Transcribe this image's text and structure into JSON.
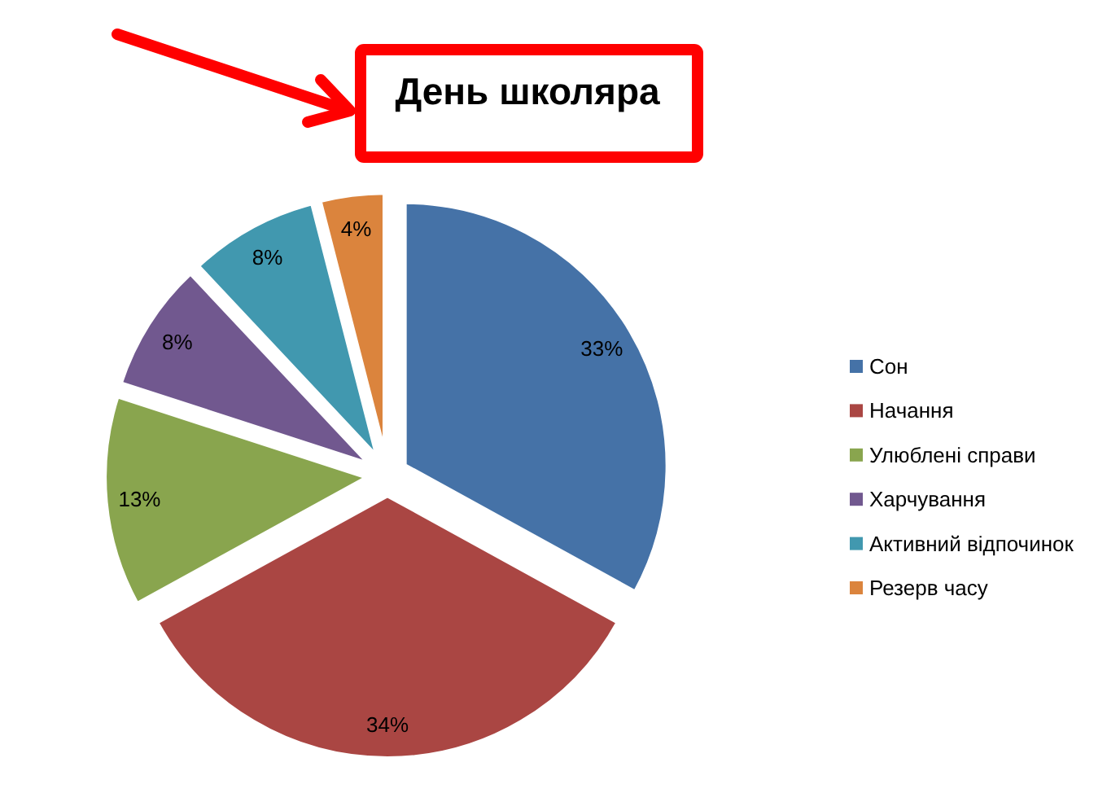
{
  "chart_data": {
    "type": "pie",
    "title": "День школяра",
    "categories": [
      "Сон",
      "Начання",
      "Улюблені справи",
      "Харчування",
      "Активний відпочинок",
      "Резерв часу"
    ],
    "values": [
      33,
      34,
      13,
      8,
      8,
      4
    ],
    "colors": [
      "#4572a7",
      "#aa4643",
      "#89a54e",
      "#71588f",
      "#4198af",
      "#db843d"
    ],
    "value_labels": [
      "33%",
      "34%",
      "13%",
      "8%",
      "8%",
      "4%"
    ],
    "legend": "right"
  }
}
